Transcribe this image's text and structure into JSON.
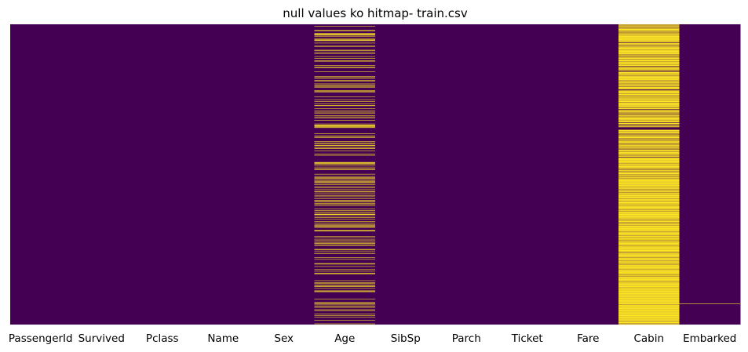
{
  "chart_data": {
    "type": "heatmap",
    "title": "null values ko hitmap- train.csv",
    "columns": [
      "PassengerId",
      "Survived",
      "Pclass",
      "Name",
      "Sex",
      "Age",
      "SibSp",
      "Parch",
      "Ticket",
      "Fare",
      "Cabin",
      "Embarked"
    ],
    "row_count": 891,
    "colorbar": false,
    "ylabel_ticks": false,
    "colors": {
      "not_null": "#440154",
      "null": "#fde725"
    },
    "null_rows": {
      "PassengerId": [],
      "Survived": [],
      "Pclass": [],
      "Name": [],
      "Sex": [],
      "Age": [
        5,
        17,
        19,
        26,
        28,
        29,
        31,
        32,
        36,
        42,
        45,
        46,
        47,
        48,
        55,
        64,
        65,
        76,
        77,
        82,
        87,
        95,
        101,
        107,
        109,
        121,
        126,
        128,
        140,
        154,
        158,
        159,
        166,
        168,
        176,
        180,
        181,
        185,
        186,
        196,
        198,
        201,
        214,
        223,
        229,
        235,
        240,
        241,
        250,
        256,
        260,
        264,
        270,
        274,
        277,
        284,
        295,
        298,
        300,
        301,
        303,
        304,
        306,
        324,
        330,
        334,
        335,
        347,
        351,
        354,
        358,
        359,
        364,
        367,
        368,
        375,
        384,
        388,
        409,
        410,
        411,
        413,
        415,
        420,
        425,
        428,
        431,
        444,
        451,
        454,
        457,
        459,
        464,
        466,
        468,
        470,
        475,
        481,
        485,
        490,
        495,
        497,
        502,
        507,
        511,
        517,
        522,
        524,
        527,
        531,
        533,
        538,
        547,
        552,
        557,
        560,
        563,
        564,
        568,
        573,
        578,
        584,
        589,
        593,
        596,
        598,
        601,
        602,
        611,
        612,
        613,
        629,
        633,
        639,
        643,
        648,
        650,
        653,
        656,
        667,
        669,
        674,
        680,
        692,
        697,
        709,
        711,
        718,
        727,
        732,
        738,
        739,
        740,
        760,
        766,
        768,
        773,
        776,
        778,
        783,
        790,
        792,
        793,
        815,
        825,
        826,
        828,
        832,
        837,
        839,
        846,
        849,
        859,
        863,
        868,
        878,
        888
      ],
      "SibSp": [],
      "Parch": [],
      "Ticket": [],
      "Fare": [],
      "Cabin": [
        0,
        2,
        4,
        5,
        7,
        8,
        9,
        12,
        13,
        14,
        15,
        16,
        17,
        19,
        20,
        22,
        24,
        25,
        26,
        28,
        29,
        30,
        32,
        33,
        34,
        35,
        36,
        37,
        38,
        39,
        40,
        41,
        42,
        43,
        44,
        45,
        46,
        47,
        48,
        49,
        50,
        51,
        53,
        56,
        57,
        58,
        59,
        60,
        63,
        64,
        65,
        67,
        68,
        69,
        70,
        71,
        72,
        73,
        74,
        76,
        77,
        78,
        79,
        80,
        81,
        82,
        83,
        84,
        85,
        86,
        87,
        89,
        90,
        91,
        93,
        94,
        95,
        98,
        99,
        100,
        101,
        103,
        104,
        105,
        106,
        107,
        108,
        109,
        111,
        112,
        113,
        114,
        115,
        116,
        117,
        119,
        120,
        121,
        122,
        125,
        126,
        127,
        129,
        130,
        131,
        132,
        133,
        134,
        135,
        138,
        141,
        142,
        143,
        144,
        145,
        146,
        147,
        149,
        150,
        152,
        153,
        154,
        155,
        156,
        157,
        158,
        159,
        160,
        161,
        162,
        163,
        164,
        165,
        167,
        168,
        169,
        171,
        172,
        173,
        175,
        176,
        178,
        179,
        180,
        181,
        182,
        184,
        186,
        187,
        188,
        189,
        190,
        191,
        192,
        196,
        197,
        198,
        199,
        200,
        201,
        202,
        203,
        204,
        206,
        207,
        208,
        210,
        211,
        212,
        213,
        214,
        216,
        217,
        219,
        220,
        221,
        222,
        223,
        225,
        226,
        227,
        228,
        229,
        231,
        232,
        233,
        234,
        235,
        236,
        237,
        238,
        239,
        240,
        241,
        242,
        243,
        244,
        246,
        247,
        249,
        250,
        253,
        254,
        255,
        256,
        258,
        259,
        260,
        261,
        264,
        265,
        266,
        267,
        270,
        271,
        272,
        274,
        276,
        277,
        278,
        279,
        280,
        281,
        282,
        283,
        285,
        286,
        287,
        288,
        289,
        290,
        293,
        294,
        295,
        296,
        300,
        301,
        302,
        304,
        313,
        314,
        315,
        316,
        317,
        319,
        320,
        321,
        322,
        324,
        326,
        328,
        330,
        331,
        333,
        334,
        335,
        336,
        338,
        339,
        341,
        343,
        344,
        346,
        347,
        348,
        349,
        350,
        352,
        353,
        355,
        357,
        358,
        359,
        360,
        361,
        363,
        364,
        365,
        367,
        368,
        371,
        372,
        373,
        374,
        375,
        376,
        378,
        379,
        380,
        381,
        382,
        383,
        384,
        385,
        387,
        388,
        389,
        391,
        392,
        395,
        396,
        397,
        398,
        399,
        400,
        401,
        402,
        403,
        404,
        405,
        406,
        407,
        408,
        409,
        410,
        411,
        413,
        414,
        415,
        416,
        418,
        419,
        420,
        421,
        422,
        423,
        424,
        425,
        426,
        427,
        428,
        431,
        432,
        433,
        434,
        436,
        437,
        439,
        440,
        441,
        442,
        443,
        444,
        446,
        447,
        448,
        450,
        451,
        453,
        454,
        455,
        456,
        458,
        459,
        460,
        461,
        462,
        463,
        464,
        465,
        466,
        467,
        468,
        469,
        470,
        471,
        472,
        473,
        474,
        475,
        476,
        477,
        478,
        479,
        480,
        481,
        482,
        484,
        485,
        486,
        487,
        489,
        490,
        491,
        493,
        494,
        495,
        496,
        497,
        498,
        500,
        501,
        502,
        503,
        505,
        506,
        507,
        508,
        509,
        510,
        511,
        512,
        513,
        514,
        515,
        517,
        518,
        519,
        520,
        521,
        522,
        524,
        525,
        526,
        527,
        528,
        529,
        530,
        531,
        532,
        533,
        534,
        535,
        537,
        538,
        539,
        540,
        541,
        542,
        543,
        544,
        545,
        546,
        547,
        548,
        549,
        551,
        552,
        553,
        554,
        556,
        557,
        558,
        559,
        560,
        561,
        562,
        563,
        564,
        565,
        566,
        567,
        568,
        569,
        570,
        571,
        572,
        573,
        574,
        575,
        576,
        578,
        579,
        580,
        582,
        583,
        584,
        585,
        587,
        588,
        589,
        590,
        592,
        593,
        594,
        595,
        597,
        598,
        599,
        600,
        601,
        602,
        603,
        604,
        605,
        606,
        607,
        608,
        609,
        610,
        611,
        612,
        613,
        614,
        616,
        617,
        618,
        619,
        620,
        621,
        622,
        623,
        624,
        625,
        627,
        628,
        629,
        630,
        631,
        632,
        634,
        635,
        636,
        637,
        638,
        639,
        640,
        642,
        643,
        644,
        646,
        647,
        648,
        649,
        650,
        651,
        652,
        653,
        654,
        655,
        656,
        658,
        659,
        660,
        661,
        662,
        663,
        664,
        665,
        666,
        667,
        668,
        669,
        670,
        671,
        672,
        673,
        674,
        676,
        678,
        679,
        680,
        681,
        682,
        683,
        684,
        685,
        686,
        687,
        688,
        689,
        690,
        692,
        693,
        694,
        695,
        696,
        697,
        698,
        699,
        700,
        702,
        703,
        704,
        705,
        706,
        707,
        709,
        710,
        711,
        713,
        714,
        715,
        716,
        717,
        718,
        719,
        720,
        721,
        722,
        723,
        724,
        725,
        727,
        728,
        729,
        730,
        731,
        732,
        733,
        734,
        735,
        736,
        737,
        738,
        739,
        740,
        741,
        743,
        744,
        745,
        746,
        747,
        749,
        750,
        751,
        752,
        753,
        754,
        755,
        756,
        757,
        758,
        759,
        760,
        761,
        762,
        763,
        765,
        766,
        767,
        768,
        769,
        770,
        771,
        772,
        773,
        774,
        775,
        776,
        777,
        778,
        779,
        780,
        782,
        783,
        784,
        785,
        786,
        787,
        788,
        789,
        790,
        791,
        792,
        793,
        794,
        795,
        796,
        797,
        798,
        799,
        800,
        801,
        802,
        803,
        804,
        805,
        806,
        807,
        808,
        809,
        810,
        811,
        812,
        813,
        814,
        815,
        816,
        817,
        818,
        819,
        820,
        821,
        822,
        823,
        824,
        825,
        826,
        827,
        828,
        829,
        830,
        832,
        833,
        834,
        835,
        836,
        837,
        838,
        839,
        840,
        841,
        842,
        843,
        844,
        845,
        846,
        847,
        848,
        849,
        850,
        851,
        852,
        853,
        854,
        855,
        856,
        857,
        858,
        859,
        860,
        861,
        862,
        863,
        864,
        865,
        866,
        867,
        868,
        869,
        870,
        871,
        872,
        873,
        874,
        875,
        876,
        877,
        878,
        880,
        881,
        882,
        883,
        884,
        885,
        886,
        888,
        890
      ],
      "Embarked": [
        829
      ]
    }
  }
}
